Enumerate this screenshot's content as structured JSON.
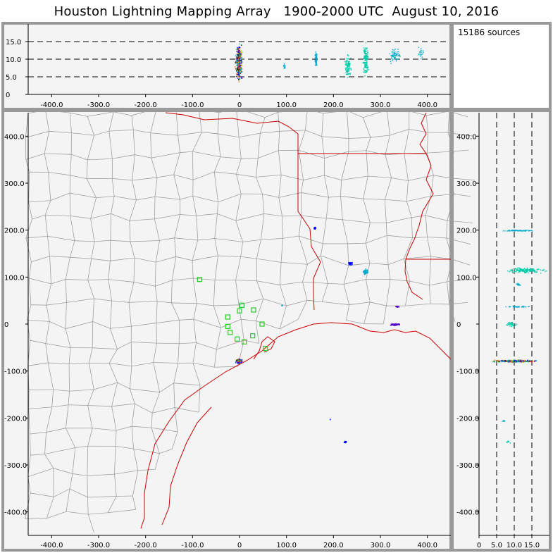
{
  "title": "Houston Lightning Mapping Array   1900-2000 UTC  August 10, 2016",
  "sources_text": "15186 sources",
  "colors": {
    "panel_bg": "#f4f4f4",
    "frame": "#999999",
    "county": "#a0a0a0",
    "state_coast": "#cc0000",
    "station": "#22cc22",
    "source_scale": [
      "#5500cc",
      "#0000ff",
      "#00aacc",
      "#00ccaa",
      "#22aa22",
      "#ddbb00",
      "#ff6600",
      "#cc0000",
      "#000000"
    ]
  },
  "chart_data": [
    {
      "panel": "altitude-vs-east-west",
      "type": "scatter",
      "xlim": [
        -450,
        450
      ],
      "ylim": [
        0,
        20
      ],
      "x_ticks": [
        -400,
        -300,
        -200,
        -100,
        0,
        100,
        200,
        300,
        400
      ],
      "x_tick_labels": [
        "-400.0",
        "-300.0",
        "-200.0",
        "-100.0",
        "0",
        "100.0",
        "200.0",
        "300.0",
        "400.0"
      ],
      "y_ticks": [
        0,
        5,
        10,
        15
      ],
      "y_tick_labels": [
        "0",
        "5.0",
        "10.0",
        "15.0"
      ],
      "reference_lines_y": [
        5,
        10,
        15
      ],
      "clusters": [
        {
          "x": -2,
          "z": 9,
          "w": 18,
          "h": 12,
          "n": 380,
          "color": "mix"
        },
        {
          "x": 95,
          "z": 8,
          "w": 6,
          "h": 2,
          "n": 15,
          "color": "#00aacc"
        },
        {
          "x": 162,
          "z": 10,
          "w": 6,
          "h": 6,
          "n": 70,
          "color": "#00aacc"
        },
        {
          "x": 230,
          "z": 8,
          "w": 18,
          "h": 8,
          "n": 110,
          "color": "#00ccaa"
        },
        {
          "x": 268,
          "z": 10,
          "w": 14,
          "h": 12,
          "n": 160,
          "color": "#00ccaa"
        },
        {
          "x": 330,
          "z": 11,
          "w": 30,
          "h": 5,
          "n": 60,
          "color": "#00aacc"
        },
        {
          "x": 385,
          "z": 12,
          "w": 16,
          "h": 4,
          "n": 20,
          "color": "#00aacc"
        }
      ]
    },
    {
      "panel": "plan-view",
      "type": "scatter",
      "xlim": [
        -450,
        450
      ],
      "ylim": [
        -450,
        450
      ],
      "x_ticks": [
        -400,
        -300,
        -200,
        -100,
        0,
        100,
        200,
        300,
        400
      ],
      "x_tick_labels": [
        "-400.0",
        "-300.0",
        "-200.0",
        "-100.0",
        "0",
        "100.0",
        "200.0",
        "300.0",
        "400.0"
      ],
      "y_ticks": [
        -400,
        -300,
        -200,
        -100,
        0,
        100,
        200,
        300,
        400
      ],
      "y_tick_labels": [
        "-400.0",
        "-300.0",
        "-200.0",
        "-100.0",
        "0",
        "100.0",
        "200.0",
        "300.0",
        "400.0"
      ],
      "stations": [
        [
          -85,
          95
        ],
        [
          -25,
          15
        ],
        [
          0,
          28
        ],
        [
          5,
          40
        ],
        [
          30,
          30
        ],
        [
          -25,
          -5
        ],
        [
          -20,
          -18
        ],
        [
          -5,
          -32
        ],
        [
          10,
          -38
        ],
        [
          28,
          -25
        ],
        [
          48,
          0
        ],
        [
          55,
          -52
        ]
      ],
      "clusters": [
        {
          "x": -2,
          "y": -78,
          "w": 16,
          "h": 12,
          "n": 320,
          "color": "mix"
        },
        {
          "x": 160,
          "y": 205,
          "w": 6,
          "h": 6,
          "n": 40,
          "color": "#0000ff"
        },
        {
          "x": 235,
          "y": 130,
          "w": 10,
          "h": 8,
          "n": 40,
          "color": "#0000ff"
        },
        {
          "x": 268,
          "y": 112,
          "w": 12,
          "h": 14,
          "n": 110,
          "color": "#00aacc"
        },
        {
          "x": 335,
          "y": 38,
          "w": 10,
          "h": 4,
          "n": 20,
          "color": "#5500cc"
        },
        {
          "x": 330,
          "y": 0,
          "w": 30,
          "h": 6,
          "n": 60,
          "color": "#5500cc"
        },
        {
          "x": 90,
          "y": 40,
          "w": 4,
          "h": 3,
          "n": 6,
          "color": "#00aacc"
        },
        {
          "x": 225,
          "y": -250,
          "w": 10,
          "h": 6,
          "n": 18,
          "color": "#0000ff"
        },
        {
          "x": 192,
          "y": -202,
          "w": 2,
          "h": 2,
          "n": 3,
          "color": "#0000ff"
        }
      ]
    },
    {
      "panel": "north-south-vs-altitude",
      "type": "scatter",
      "xlim": [
        0,
        20
      ],
      "ylim": [
        -450,
        450
      ],
      "x_ticks": [
        0,
        5,
        10,
        15
      ],
      "x_tick_labels": [
        "0",
        "5.0",
        "10.0",
        "15.0"
      ],
      "y_ticks": [
        -400,
        -300,
        -200,
        -100,
        0,
        100,
        200,
        300,
        400
      ],
      "y_tick_labels": [
        "-400.0",
        "-300.0",
        "-200.0",
        "-100.0",
        "0",
        "100.0",
        "200.0",
        "300.0",
        "400.0"
      ],
      "reference_lines_x": [
        5,
        10,
        15
      ],
      "clusters": [
        {
          "z": 11,
          "y": 200,
          "w": 12,
          "h": 3,
          "n": 80,
          "color": "#00aacc"
        },
        {
          "z": 13,
          "y": 115,
          "w": 14,
          "h": 14,
          "n": 170,
          "color": "#00ccaa"
        },
        {
          "z": 11,
          "y": 85,
          "w": 2,
          "h": 8,
          "n": 15,
          "color": "#00aacc"
        },
        {
          "z": 11,
          "y": 38,
          "w": 10,
          "h": 3,
          "n": 40,
          "color": "#00aacc"
        },
        {
          "z": 9,
          "y": 0,
          "w": 4,
          "h": 12,
          "n": 40,
          "color": "#00ccaa"
        },
        {
          "z": 10,
          "y": -78,
          "w": 16,
          "h": 6,
          "n": 300,
          "color": "mix"
        },
        {
          "z": 7,
          "y": -205,
          "w": 2,
          "h": 4,
          "n": 8,
          "color": "#00aacc"
        },
        {
          "z": 8,
          "y": -250,
          "w": 2,
          "h": 6,
          "n": 10,
          "color": "#00ccaa"
        }
      ]
    }
  ]
}
